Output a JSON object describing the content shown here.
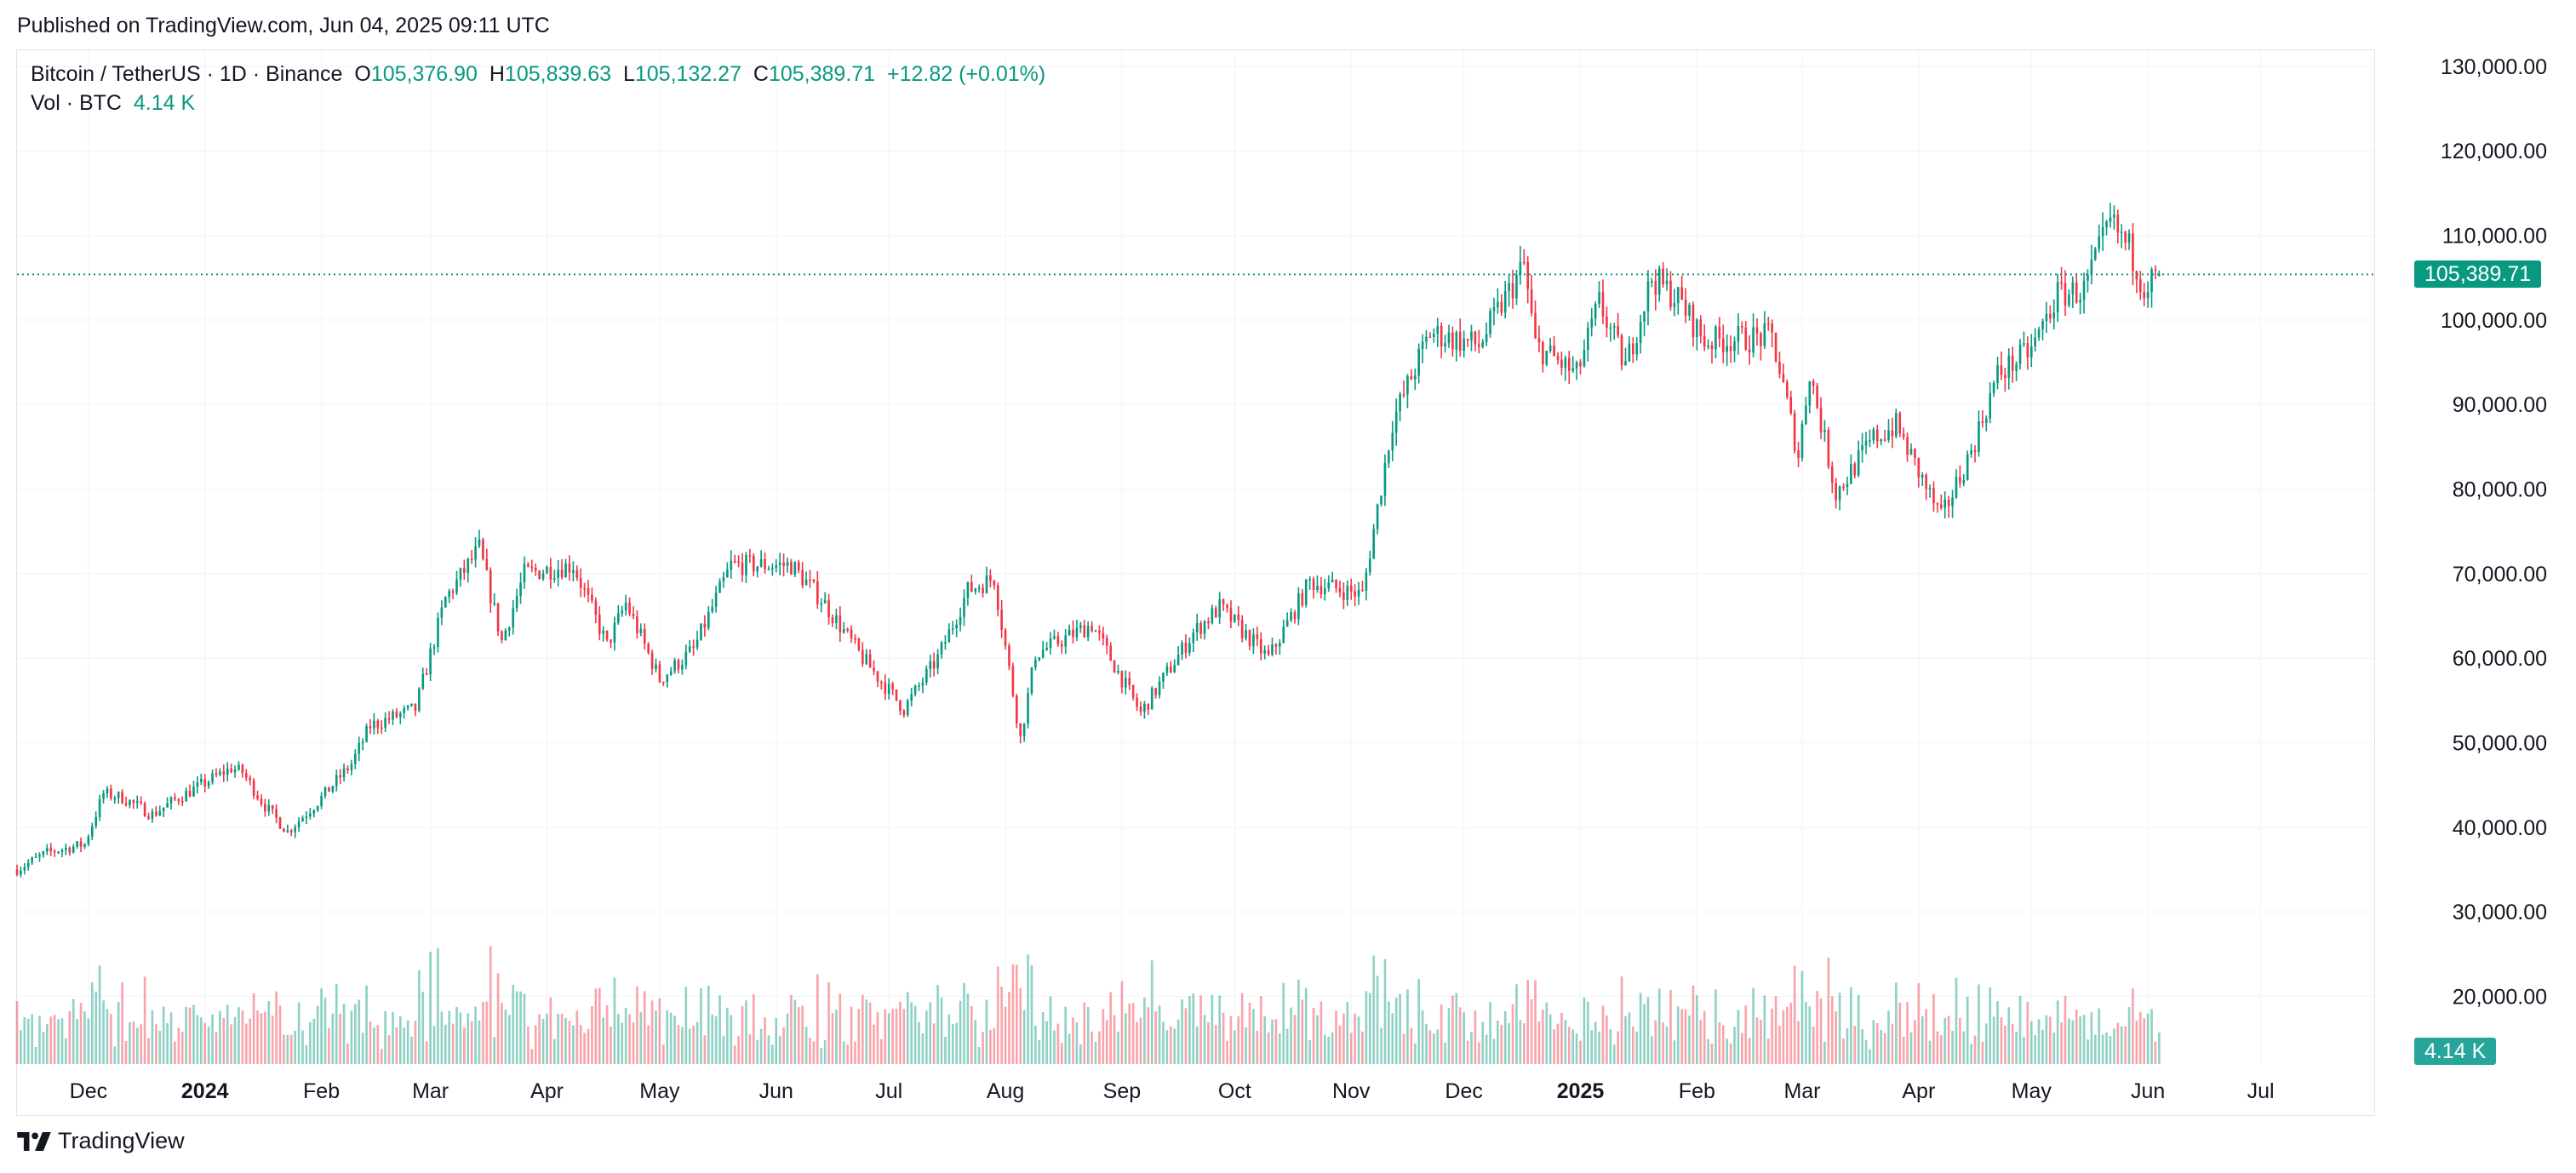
{
  "published": "Published on TradingView.com, Jun 04, 2025 09:11 UTC",
  "brand": "TradingView",
  "legend": {
    "symbol": "Bitcoin / TetherUS · 1D · Binance",
    "open_label": "O",
    "open": "105,376.90",
    "high_label": "H",
    "high": "105,839.63",
    "low_label": "L",
    "low": "105,132.27",
    "close_label": "C",
    "close": "105,389.71",
    "change": "+12.82 (+0.01%)",
    "vol_label": "Vol · BTC",
    "vol_value": "4.14 K"
  },
  "colors": {
    "up": "#089981",
    "down": "#f23645",
    "grid": "#f0f3fa",
    "axis_text": "#131722"
  },
  "chart_data": {
    "type": "candlestick",
    "y_axis": {
      "min": 12000,
      "max": 132000,
      "ticks": [
        20000,
        30000,
        40000,
        50000,
        60000,
        70000,
        80000,
        90000,
        100000,
        110000,
        120000,
        130000
      ],
      "tick_labels": [
        "20,000.00",
        "30,000.00",
        "40,000.00",
        "50,000.00",
        "60,000.00",
        "70,000.00",
        "80,000.00",
        "90,000.00",
        "100,000.00",
        "110,000.00",
        "120,000.00",
        "130,000.00"
      ]
    },
    "x_axis": {
      "start": "2023-11-12",
      "end": "2025-07-31",
      "ticks": [
        {
          "date": "2023-12-01",
          "label": "Dec",
          "bold": false
        },
        {
          "date": "2024-01-01",
          "label": "2024",
          "bold": true
        },
        {
          "date": "2024-02-01",
          "label": "Feb",
          "bold": false
        },
        {
          "date": "2024-03-01",
          "label": "Mar",
          "bold": false
        },
        {
          "date": "2024-04-01",
          "label": "Apr",
          "bold": false
        },
        {
          "date": "2024-05-01",
          "label": "May",
          "bold": false
        },
        {
          "date": "2024-06-01",
          "label": "Jun",
          "bold": false
        },
        {
          "date": "2024-07-01",
          "label": "Jul",
          "bold": false
        },
        {
          "date": "2024-08-01",
          "label": "Aug",
          "bold": false
        },
        {
          "date": "2024-09-01",
          "label": "Sep",
          "bold": false
        },
        {
          "date": "2024-10-01",
          "label": "Oct",
          "bold": false
        },
        {
          "date": "2024-11-01",
          "label": "Nov",
          "bold": false
        },
        {
          "date": "2024-12-01",
          "label": "Dec",
          "bold": false
        },
        {
          "date": "2025-01-01",
          "label": "2025",
          "bold": true
        },
        {
          "date": "2025-02-01",
          "label": "Feb",
          "bold": false
        },
        {
          "date": "2025-03-01",
          "label": "Mar",
          "bold": false
        },
        {
          "date": "2025-04-01",
          "label": "Apr",
          "bold": false
        },
        {
          "date": "2025-05-01",
          "label": "May",
          "bold": false
        },
        {
          "date": "2025-06-01",
          "label": "Jun",
          "bold": false
        },
        {
          "date": "2025-07-01",
          "label": "Jul",
          "bold": false
        }
      ]
    },
    "price_path": [
      [
        "2023-11-12",
        35000
      ],
      [
        "2023-11-20",
        37000
      ],
      [
        "2023-11-30",
        38000
      ],
      [
        "2023-12-05",
        44000
      ],
      [
        "2023-12-10",
        43500
      ],
      [
        "2023-12-18",
        41500
      ],
      [
        "2023-12-25",
        43500
      ],
      [
        "2024-01-02",
        45500
      ],
      [
        "2024-01-08",
        47000
      ],
      [
        "2024-01-11",
        46500
      ],
      [
        "2024-01-17",
        42500
      ],
      [
        "2024-01-23",
        39500
      ],
      [
        "2024-01-31",
        43000
      ],
      [
        "2024-02-09",
        47500
      ],
      [
        "2024-02-14",
        52000
      ],
      [
        "2024-02-26",
        54000
      ],
      [
        "2024-03-05",
        67000
      ],
      [
        "2024-03-14",
        73000
      ],
      [
        "2024-03-20",
        62000
      ],
      [
        "2024-03-26",
        70000
      ],
      [
        "2024-04-08",
        71000
      ],
      [
        "2024-04-17",
        61500
      ],
      [
        "2024-04-22",
        66500
      ],
      [
        "2024-05-01",
        57500
      ],
      [
        "2024-05-10",
        61000
      ],
      [
        "2024-05-20",
        71000
      ],
      [
        "2024-06-05",
        71000
      ],
      [
        "2024-06-13",
        67000
      ],
      [
        "2024-06-24",
        60000
      ],
      [
        "2024-07-05",
        54000
      ],
      [
        "2024-07-14",
        60000
      ],
      [
        "2024-07-22",
        68000
      ],
      [
        "2024-07-29",
        69500
      ],
      [
        "2024-08-05",
        50500
      ],
      [
        "2024-08-09",
        60500
      ],
      [
        "2024-08-24",
        64000
      ],
      [
        "2024-09-06",
        53500
      ],
      [
        "2024-09-20",
        63000
      ],
      [
        "2024-09-27",
        66000
      ],
      [
        "2024-10-10",
        60000
      ],
      [
        "2024-10-21",
        69000
      ],
      [
        "2024-11-04",
        67500
      ],
      [
        "2024-11-12",
        88000
      ],
      [
        "2024-11-22",
        98500
      ],
      [
        "2024-12-05",
        97000
      ],
      [
        "2024-12-17",
        106500
      ],
      [
        "2024-12-20",
        97000
      ],
      [
        "2024-12-31",
        93500
      ],
      [
        "2025-01-06",
        102000
      ],
      [
        "2025-01-13",
        94500
      ],
      [
        "2025-01-20",
        105000
      ],
      [
        "2025-01-27",
        102500
      ],
      [
        "2025-02-03",
        97500
      ],
      [
        "2025-02-21",
        98000
      ],
      [
        "2025-02-28",
        84000
      ],
      [
        "2025-03-03",
        94000
      ],
      [
        "2025-03-10",
        79500
      ],
      [
        "2025-03-20",
        86000
      ],
      [
        "2025-03-26",
        87500
      ],
      [
        "2025-04-07",
        76500
      ],
      [
        "2025-04-15",
        84500
      ],
      [
        "2025-04-22",
        93500
      ],
      [
        "2025-05-01",
        96500
      ],
      [
        "2025-05-08",
        103000
      ],
      [
        "2025-05-15",
        103500
      ],
      [
        "2025-05-22",
        111500
      ],
      [
        "2025-05-27",
        108500
      ],
      [
        "2025-05-31",
        104000
      ],
      [
        "2025-06-04",
        105389
      ]
    ],
    "volume_axis_scale_btc": 330000,
    "last_price": 105389.71,
    "last_price_label": "105,389.71",
    "last_volume_label": "4.14 K"
  }
}
